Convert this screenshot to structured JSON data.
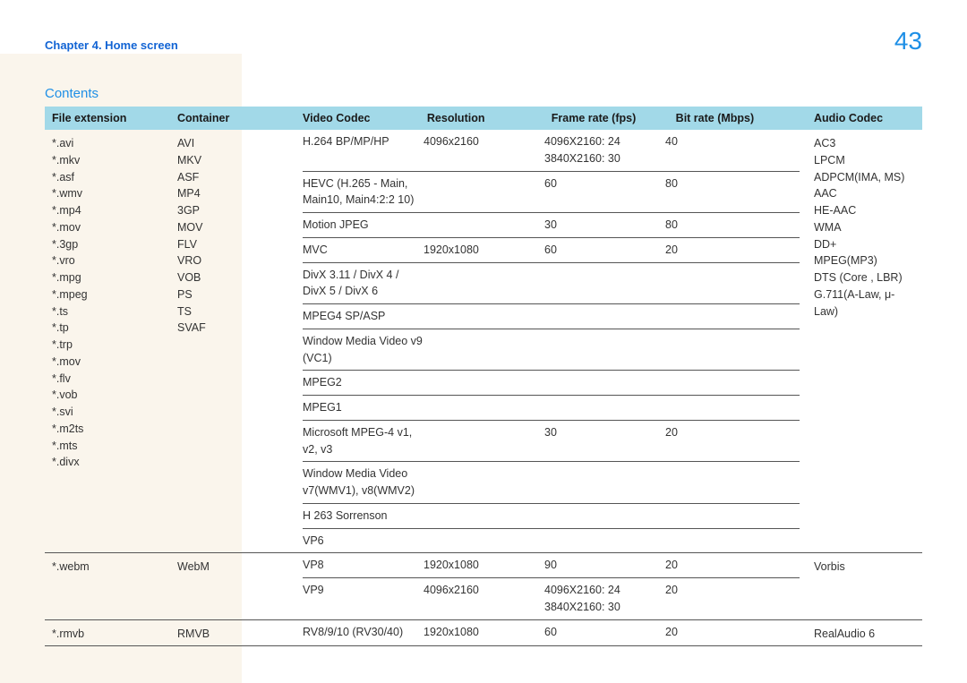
{
  "header": {
    "chapter": "Chapter 4. Home screen",
    "page_number": "43"
  },
  "section": {
    "title": "Contents"
  },
  "table": {
    "columns": [
      "File extension",
      "Container",
      "Video Codec",
      "Resolution",
      "Frame rate (fps)",
      "Bit rate (Mbps)",
      "Audio Codec"
    ],
    "header_bg": "#a2d9e8",
    "row_border": "#555555",
    "groups": [
      {
        "file_extensions": [
          "*.avi",
          "*.mkv",
          "*.asf",
          "*.wmv",
          "*.mp4",
          "*.mov",
          "*.3gp",
          "*.vro",
          "*.mpg",
          "*.mpeg",
          "*.ts",
          "*.tp",
          "*.trp",
          "*.mov",
          "*.flv",
          "*.vob",
          "*.svi",
          "*.m2ts",
          "*.mts",
          " *.divx"
        ],
        "containers": [
          "AVI",
          "MKV",
          "ASF",
          "MP4",
          "3GP",
          "MOV",
          "FLV",
          "VRO",
          "VOB",
          "PS",
          "TS",
          "SVAF"
        ],
        "codec_rows": [
          {
            "codec": "H.264 BP/MP/HP",
            "resolution": "4096x2160",
            "fps": "4096X2160: 24\n3840X2160: 30",
            "bitrate": "40",
            "divider": true
          },
          {
            "codec": "HEVC (H.265 - Main, Main10, Main4:2:2 10)",
            "resolution": "",
            "fps": "60",
            "bitrate": "80",
            "divider": true
          },
          {
            "codec": "Motion JPEG",
            "resolution": "",
            "fps": "30",
            "bitrate": "80",
            "divider": true
          },
          {
            "codec": "MVC",
            "resolution": "1920x1080",
            "fps": "60",
            "bitrate": "20",
            "divider": true
          },
          {
            "codec": "DivX 3.11 / DivX 4 / DivX 5 / DivX 6",
            "resolution": "",
            "fps": "",
            "bitrate": "",
            "divider": true
          },
          {
            "codec": "MPEG4 SP/ASP",
            "resolution": "",
            "fps": "",
            "bitrate": "",
            "divider": true
          },
          {
            "codec": "Window Media Video v9 (VC1)",
            "resolution": "",
            "fps": "",
            "bitrate": "",
            "divider": true
          },
          {
            "codec": "MPEG2",
            "resolution": "",
            "fps": "",
            "bitrate": "",
            "divider": true
          },
          {
            "codec": "MPEG1",
            "resolution": "",
            "fps": "",
            "bitrate": "",
            "divider": true
          },
          {
            "codec": "Microsoft MPEG-4 v1, v2, v3",
            "resolution": "",
            "fps": "30",
            "bitrate": "20",
            "divider": true
          },
          {
            "codec": "Window Media Video v7(WMV1), v8(WMV2)",
            "resolution": "",
            "fps": "",
            "bitrate": "",
            "divider": true
          },
          {
            "codec": "H 263 Sorrenson",
            "resolution": "",
            "fps": "",
            "bitrate": "",
            "divider": true
          },
          {
            "codec": "VP6",
            "resolution": "",
            "fps": "",
            "bitrate": "",
            "divider": false
          }
        ],
        "audio_codecs": [
          "AC3",
          "LPCM",
          "ADPCM(IMA, MS)",
          "AAC",
          "HE-AAC",
          "WMA",
          "DD+",
          "MPEG(MP3)",
          "DTS (Core , LBR)",
          "G.711(A-Law, μ-Law)"
        ]
      },
      {
        "file_extensions": [
          "*.webm"
        ],
        "containers": [
          "WebM"
        ],
        "codec_rows": [
          {
            "codec": "VP8",
            "resolution": "1920x1080",
            "fps": "90",
            "bitrate": "20",
            "divider": true
          },
          {
            "codec": "VP9",
            "resolution": "4096x2160",
            "fps": "4096X2160: 24\n3840X2160: 30",
            "bitrate": "20",
            "divider": false
          }
        ],
        "audio_codecs": [
          "Vorbis"
        ]
      },
      {
        "file_extensions": [
          "*.rmvb"
        ],
        "containers": [
          "RMVB"
        ],
        "codec_rows": [
          {
            "codec": "RV8/9/10 (RV30/40)",
            "resolution": "1920x1080",
            "fps": "60",
            "bitrate": "20",
            "divider": false
          }
        ],
        "audio_codecs": [
          "RealAudio 6"
        ]
      }
    ]
  },
  "colors": {
    "chapter_link": "#1264d4",
    "page_number": "#1e8fe6",
    "section_title": "#1e8fe6",
    "shade_bg": "#faf5ec"
  }
}
